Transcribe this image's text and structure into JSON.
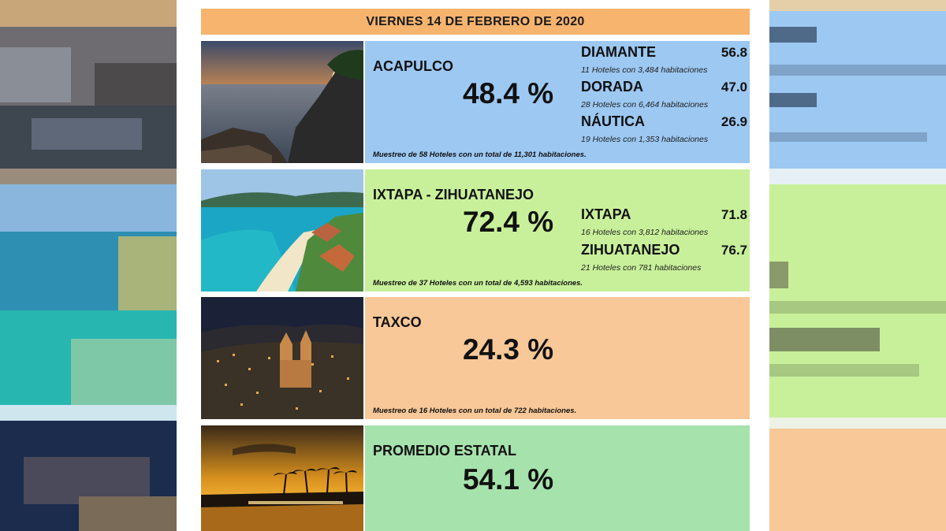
{
  "header": {
    "date": "VIERNES 14 DE FEBRERO DE 2020"
  },
  "colors": {
    "header": "#f6b46e",
    "acapulco": "#9cc8f2",
    "ixtapa": "#c8f09a",
    "taxco": "#f8c898",
    "promedio": "#a6e2ac"
  },
  "regions": [
    {
      "name": "ACAPULCO",
      "percent": "48.4 %",
      "zones": [
        {
          "name": "DIAMANTE",
          "value": "56.8",
          "note": "11 Hoteles con 3,484 habitaciones"
        },
        {
          "name": "DORADA",
          "value": "47.0",
          "note": "28 Hoteles con 6,464 habitaciones"
        },
        {
          "name": "NÁUTICA",
          "value": "26.9",
          "note": "19 Hoteles con 1,353 habitaciones"
        }
      ],
      "sample": "Muestreo de 58 Hoteles con un total de 11,301 habitaciones."
    },
    {
      "name": "IXTAPA - ZIHUATANEJO",
      "percent": "72.4 %",
      "zones": [
        {
          "name": "IXTAPA",
          "value": "71.8",
          "note": "16 Hoteles con 3,812 habitaciones"
        },
        {
          "name": "ZIHUATANEJO",
          "value": "76.7",
          "note": "21 Hoteles con 781 habitaciones"
        }
      ],
      "sample": "Muestreo de 37 Hoteles con un total de 4,593 habitaciones."
    },
    {
      "name": "TAXCO",
      "percent": "24.3 %",
      "sample": "Muestreo de 16 Hoteles con un total de 722 habitaciones."
    },
    {
      "name": "PROMEDIO ESTATAL",
      "percent": "54.1 %"
    }
  ]
}
